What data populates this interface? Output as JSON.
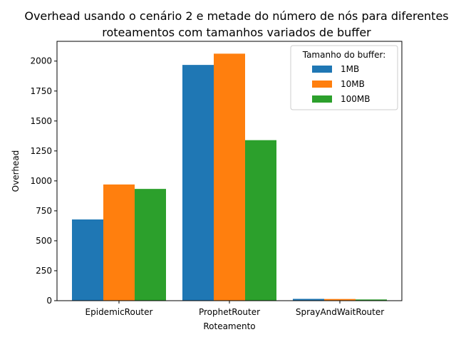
{
  "chart_data": {
    "type": "bar",
    "title_line1": "Overhead usando o cenário 2 e metade do número de nós para diferentes",
    "title_line2": "roteamentos com tamanhos variados de buffer",
    "xlabel": "Roteamento",
    "ylabel": "Overhead",
    "categories": [
      "EpidemicRouter",
      "ProphetRouter",
      "SprayAndWaitRouter"
    ],
    "series": [
      {
        "name": "1MB",
        "color": "#1f77b4",
        "values": [
          678,
          1968,
          15
        ]
      },
      {
        "name": "10MB",
        "color": "#ff7f0e",
        "values": [
          970,
          2062,
          14
        ]
      },
      {
        "name": "100MB",
        "color": "#2ca02c",
        "values": [
          933,
          1340,
          10
        ]
      }
    ],
    "ylim": [
      0,
      2165
    ],
    "yticks": [
      0,
      250,
      500,
      750,
      1000,
      1250,
      1500,
      1750,
      2000
    ],
    "legend_title": "Tamanho do buffer:",
    "legend_position": "top-right",
    "grid": false
  }
}
